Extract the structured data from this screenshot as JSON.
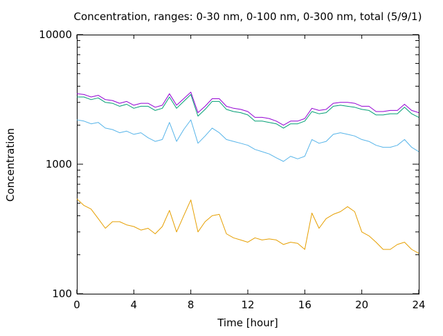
{
  "chart_data": {
    "type": "line",
    "title": "Concentration, ranges: 0-30 nm, 0-100 nm, 0-300 nm, total (5/9/1)",
    "xlabel": "Time [hour]",
    "ylabel": "Concentration",
    "xlim": [
      0,
      24
    ],
    "ylim": [
      100,
      10000
    ],
    "y_scale": "log",
    "grid": false,
    "legend": "none",
    "x_ticks": [
      0,
      4,
      8,
      12,
      16,
      20,
      24
    ],
    "x_tick_labels": [
      "0",
      "4",
      "8",
      "12",
      "16",
      "20",
      "24"
    ],
    "y_ticks": [
      100,
      1000,
      10000
    ],
    "y_tick_labels": [
      "100",
      "1000",
      "10000"
    ],
    "y_minor_ticks": [
      200,
      300,
      400,
      500,
      600,
      700,
      800,
      900,
      2000,
      3000,
      4000,
      5000,
      6000,
      7000,
      8000,
      9000
    ],
    "x": [
      0,
      0.5,
      1,
      1.5,
      2,
      2.5,
      3,
      3.5,
      4,
      4.5,
      5,
      5.5,
      6,
      6.5,
      7,
      7.5,
      8,
      8.5,
      9,
      9.5,
      10,
      10.5,
      11,
      11.5,
      12,
      12.5,
      13,
      13.5,
      14,
      14.5,
      15,
      15.5,
      16,
      16.5,
      17,
      17.5,
      18,
      18.5,
      19,
      19.5,
      20,
      20.5,
      21,
      21.5,
      22,
      22.5,
      23,
      23.5,
      24
    ],
    "series": [
      {
        "color": "#9400d3",
        "values": [
          3500,
          3450,
          3300,
          3400,
          3150,
          3100,
          2950,
          3050,
          2850,
          2950,
          2950,
          2750,
          2850,
          3500,
          2850,
          3200,
          3600,
          2500,
          2800,
          3200,
          3200,
          2800,
          2700,
          2650,
          2550,
          2300,
          2300,
          2250,
          2150,
          2000,
          2150,
          2150,
          2250,
          2700,
          2600,
          2650,
          2950,
          3000,
          3000,
          2950,
          2800,
          2800,
          2550,
          2550,
          2600,
          2600,
          2900,
          2600,
          2500
        ]
      },
      {
        "color": "#009e73",
        "values": [
          3300,
          3300,
          3150,
          3250,
          3000,
          2950,
          2800,
          2900,
          2700,
          2800,
          2800,
          2600,
          2700,
          3300,
          2700,
          3050,
          3450,
          2350,
          2650,
          3050,
          3050,
          2650,
          2550,
          2500,
          2400,
          2150,
          2150,
          2100,
          2050,
          1900,
          2050,
          2050,
          2150,
          2550,
          2450,
          2500,
          2800,
          2850,
          2800,
          2750,
          2650,
          2600,
          2400,
          2400,
          2450,
          2450,
          2750,
          2450,
          2300
        ]
      },
      {
        "color": "#56b4e9",
        "values": [
          2200,
          2150,
          2050,
          2100,
          1900,
          1850,
          1750,
          1800,
          1700,
          1750,
          1600,
          1500,
          1550,
          2100,
          1500,
          1850,
          2200,
          1450,
          1650,
          1900,
          1750,
          1550,
          1500,
          1450,
          1400,
          1300,
          1250,
          1200,
          1120,
          1050,
          1150,
          1100,
          1150,
          1550,
          1450,
          1500,
          1700,
          1750,
          1700,
          1650,
          1550,
          1500,
          1400,
          1350,
          1350,
          1400,
          1550,
          1350,
          1250
        ]
      },
      {
        "color": "#e69f00",
        "values": [
          540,
          480,
          450,
          380,
          320,
          360,
          360,
          340,
          330,
          310,
          320,
          290,
          330,
          440,
          300,
          400,
          530,
          300,
          360,
          400,
          410,
          290,
          270,
          260,
          250,
          270,
          260,
          265,
          260,
          240,
          250,
          245,
          220,
          420,
          320,
          380,
          410,
          430,
          470,
          430,
          300,
          280,
          250,
          220,
          220,
          240,
          250,
          220,
          205
        ]
      }
    ]
  }
}
